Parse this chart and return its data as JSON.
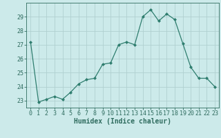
{
  "x": [
    0,
    1,
    2,
    3,
    4,
    5,
    6,
    7,
    8,
    9,
    10,
    11,
    12,
    13,
    14,
    15,
    16,
    17,
    18,
    19,
    20,
    21,
    22,
    23
  ],
  "y": [
    27.2,
    22.9,
    23.1,
    23.3,
    23.1,
    23.6,
    24.2,
    24.5,
    24.6,
    25.6,
    25.7,
    27.0,
    27.2,
    27.0,
    29.0,
    29.5,
    28.7,
    29.2,
    28.8,
    27.1,
    25.4,
    24.6,
    24.6,
    24.0
  ],
  "line_color": "#2e7d6e",
  "marker": "D",
  "marker_size": 2.0,
  "bg_color": "#cceaea",
  "grid_color": "#b0d0d0",
  "xlabel": "Humidex (Indice chaleur)",
  "ylim": [
    22.5,
    30.0
  ],
  "xlim": [
    -0.5,
    23.5
  ],
  "yticks": [
    23,
    24,
    25,
    26,
    27,
    28,
    29
  ],
  "xticks": [
    0,
    1,
    2,
    3,
    4,
    5,
    6,
    7,
    8,
    9,
    10,
    11,
    12,
    13,
    14,
    15,
    16,
    17,
    18,
    19,
    20,
    21,
    22,
    23
  ],
  "tick_color": "#2e6b5e",
  "label_fontsize": 7.0,
  "tick_fontsize": 6.0
}
